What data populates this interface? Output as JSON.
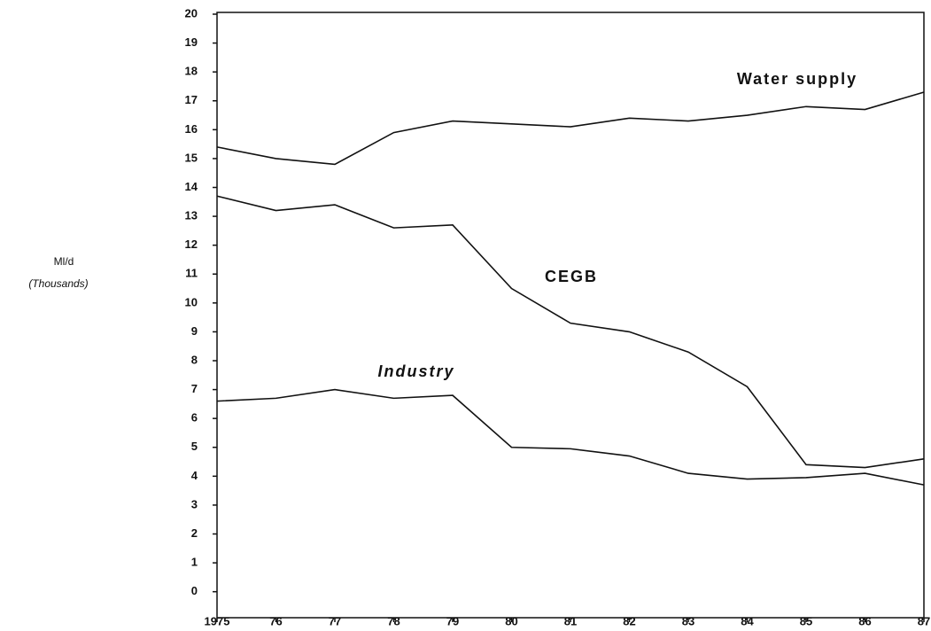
{
  "chart_data": {
    "type": "line",
    "ylabel": [
      "Ml/d",
      "(Thousands)"
    ],
    "categories": [
      "1975",
      "76",
      "77",
      "78",
      "79",
      "80",
      "81",
      "82",
      "83",
      "84",
      "85",
      "86",
      "87"
    ],
    "series": [
      {
        "name": "Water supply",
        "color": "#111111",
        "values": [
          15.4,
          15.0,
          14.8,
          15.9,
          16.3,
          16.2,
          16.1,
          16.4,
          16.3,
          16.5,
          16.8,
          16.7,
          17.3
        ]
      },
      {
        "name": "CEGB",
        "color": "#111111",
        "values": [
          13.7,
          13.2,
          13.4,
          12.6,
          12.7,
          10.5,
          9.3,
          9.0,
          8.3,
          7.1,
          4.4,
          4.3,
          4.6
        ]
      },
      {
        "name": "Industry",
        "color": "#111111",
        "values": [
          6.6,
          6.7,
          7.0,
          6.7,
          6.8,
          5.0,
          4.95,
          4.7,
          4.1,
          3.9,
          3.95,
          4.1,
          3.7
        ]
      }
    ],
    "ylim": [
      -0.9,
      20
    ],
    "yticks": [
      0,
      1,
      2,
      3,
      4,
      5,
      6,
      7,
      8,
      9,
      10,
      11,
      12,
      13,
      14,
      15,
      16,
      17,
      18,
      19,
      20
    ]
  }
}
